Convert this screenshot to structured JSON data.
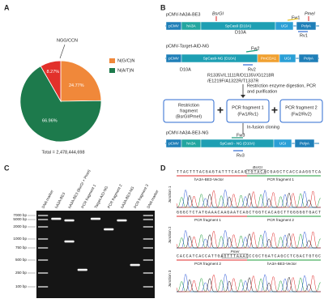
{
  "panels": [
    "A",
    "B",
    "C",
    "D"
  ],
  "chart_data": {
    "type": "pie",
    "categories": [
      "N(G/C)N",
      "N(A/T)N",
      null
    ],
    "values": [
      24.77,
      66.96,
      8.27
    ],
    "value_labels": [
      "24.77%",
      "66.96%",
      "8.27%"
    ],
    "colors": [
      "#f0883a",
      "#1d7a4c",
      "#e2312b"
    ],
    "annotation": "NGG/CCN",
    "total": "Total = 2,478,444,698",
    "legend": "right"
  },
  "diagram": {
    "constructs": [
      {
        "name": "pCMV-hA3A-BE3",
        "elements": [
          "pCMV",
          "hA3A",
          "SpCas9 (D10A)",
          "UGI",
          "PolyA"
        ]
      },
      {
        "name": "pCMV-Target-AID-NG",
        "elements": [
          "pCMV",
          "SpCas9-NG (D10A)",
          "PmCDA1",
          "UGI",
          "PolyA"
        ]
      },
      {
        "name": "pCMV-hA3A-BE3-NG",
        "elements": [
          "pCMV",
          "hA3A",
          "SpCas9 - NG (D10A)",
          "UGI",
          "PolyA"
        ]
      }
    ],
    "sites": [
      "BsrGI",
      "PmeI"
    ],
    "primers": [
      "Fw1",
      "Rv1",
      "Fw2",
      "Rv2",
      "Fw3",
      "Rv3"
    ],
    "mutation_labels": [
      "D10A",
      "D10A"
    ],
    "mutations": [
      "R1335V/L1111R/D1135V/G1218R",
      "/E1219F/A1322R/T1337R"
    ],
    "steps": [
      "Restriction enzyme digestion, PCR",
      "and purification",
      "In-fusion cloning"
    ],
    "fragments": [
      [
        "Restriction",
        "fragment",
        "(BsrGI/PmeI)"
      ],
      [
        "PCR fragment 1",
        "(Fw1/Rv1)"
      ],
      [
        "PCR fragment 2",
        "(Fw2/Rv2)"
      ]
    ]
  },
  "gel": {
    "lanes": [
      "DNA marker",
      "hA3A-BE3",
      "hA3A-BE3 (BsrGI + PmeI)",
      "PCR fragment 1",
      "Target-AID-NG",
      "PCR fragment 2",
      "hA3A-BE3-NG",
      "PCR fragment 3",
      "DNA marker"
    ],
    "sizes": [
      "7000 bp",
      "5000 bp",
      "2000 bp",
      "1000 bp",
      "750 bp",
      "500 bp",
      "250 bp",
      "100 bp"
    ]
  },
  "chromatograms": [
    {
      "site": "BsrGI",
      "sequence": "TTACTTTACGAGTATTTCACAGTGTACACGAGCTCACCAAGGTCA",
      "left": "hA3A-BE3-Vector",
      "right": "PCR fragment 1",
      "junction": "Junction 1"
    },
    {
      "sequence": "GGGCTCTATGAAACAAGAATCAGCTGGTCACAGCTTGGGGGTGACT",
      "left": "PCR fragment 1",
      "right": "PCR fragment 2",
      "junction": "Junction 2"
    },
    {
      "site": "PmeI",
      "sequence": "CACCATCACCATTGAGTTTAAACCCGCTGATCAGCCTCGACTGTGC",
      "left": "PCR fragment 2",
      "right": "hA3A-BE3-Vector",
      "junction": "Junction 3"
    }
  ]
}
